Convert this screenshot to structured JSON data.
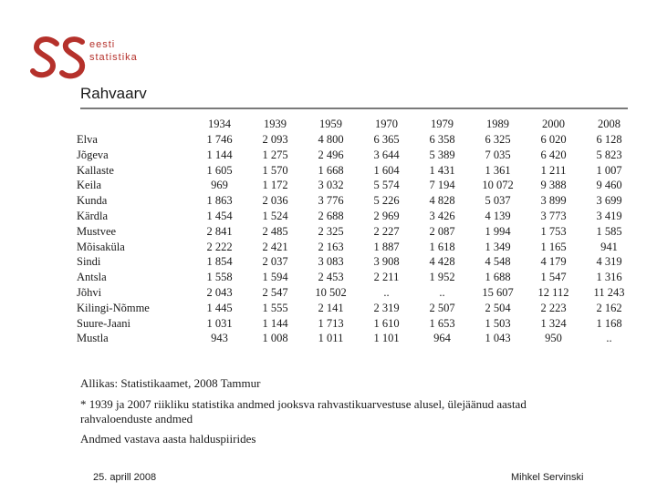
{
  "brand": {
    "logo_text_line1": "eesti",
    "logo_text_line2": "statistika",
    "accent_color": "#b5312b"
  },
  "title": "Rahvaarv",
  "table": {
    "columns": [
      "1934",
      "1939",
      "1959",
      "1970",
      "1979",
      "1989",
      "2000",
      "2008"
    ],
    "rows": [
      {
        "name": "Elva",
        "values": [
          "1 746",
          "2 093",
          "4 800",
          "6 365",
          "6 358",
          "6 325",
          "6 020",
          "6 128"
        ]
      },
      {
        "name": "Jõgeva",
        "values": [
          "1 144",
          "1 275",
          "2 496",
          "3 644",
          "5 389",
          "7 035",
          "6 420",
          "5 823"
        ]
      },
      {
        "name": "Kallaste",
        "values": [
          "1 605",
          "1 570",
          "1 668",
          "1 604",
          "1 431",
          "1 361",
          "1 211",
          "1 007"
        ]
      },
      {
        "name": "Keila",
        "values": [
          "969",
          "1 172",
          "3 032",
          "5 574",
          "7 194",
          "10 072",
          "9 388",
          "9 460"
        ]
      },
      {
        "name": "Kunda",
        "values": [
          "1 863",
          "2 036",
          "3 776",
          "5 226",
          "4 828",
          "5 037",
          "3 899",
          "3 699"
        ]
      },
      {
        "name": "Kärdla",
        "values": [
          "1 454",
          "1 524",
          "2 688",
          "2 969",
          "3 426",
          "4 139",
          "3 773",
          "3 419"
        ]
      },
      {
        "name": "Mustvee",
        "values": [
          "2 841",
          "2 485",
          "2 325",
          "2 227",
          "2 087",
          "1 994",
          "1 753",
          "1 585"
        ]
      },
      {
        "name": "Mõisaküla",
        "values": [
          "2 222",
          "2 421",
          "2 163",
          "1 887",
          "1 618",
          "1 349",
          "1 165",
          "941"
        ]
      },
      {
        "name": "Sindi",
        "values": [
          "1 854",
          "2 037",
          "3 083",
          "3 908",
          "4 428",
          "4 548",
          "4 179",
          "4 319"
        ]
      },
      {
        "name": "Antsla",
        "values": [
          "1 558",
          "1 594",
          "2 453",
          "2 211",
          "1 952",
          "1 688",
          "1 547",
          "1 316"
        ]
      },
      {
        "name": "Jõhvi",
        "values": [
          "2 043",
          "2 547",
          "10 502",
          "..",
          "..",
          "15 607",
          "12 112",
          "11 243"
        ]
      },
      {
        "name": "Kilingi-Nõmme",
        "values": [
          "1 445",
          "1 555",
          "2 141",
          "2 319",
          "2 507",
          "2 504",
          "2 223",
          "2 162"
        ]
      },
      {
        "name": "Suure-Jaani",
        "values": [
          "1 031",
          "1 144",
          "1 713",
          "1 610",
          "1 653",
          "1 503",
          "1 324",
          "1 168"
        ]
      },
      {
        "name": "Mustla",
        "values": [
          "943",
          "1 008",
          "1 011",
          "1 101",
          "964",
          "1 043",
          "950",
          ".."
        ]
      }
    ]
  },
  "notes": {
    "source": "Allikas: Statistikaamet, 2008 Tammur",
    "footnote": "* 1939 ja 2007 riikliku statistika andmed jooksva rahvastikuarvestuse alusel, ülejäänud aastad rahvaloenduste andmed",
    "admin": "Andmed vastava aasta halduspiirides"
  },
  "footer": {
    "date": "25. aprill 2008",
    "author": "Mihkel Servinski"
  }
}
